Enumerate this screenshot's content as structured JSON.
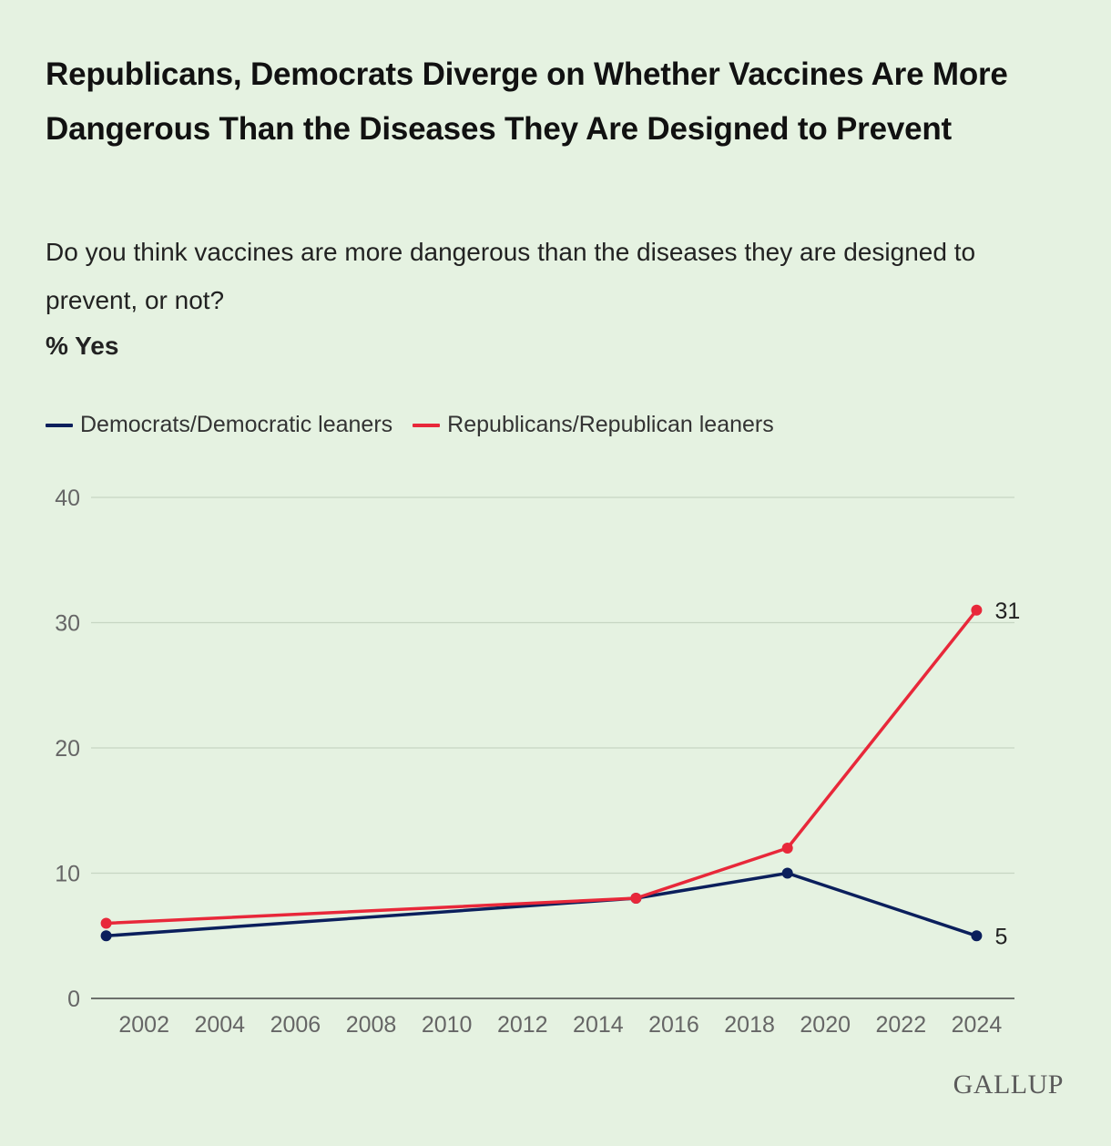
{
  "title": "Republicans, Democrats Diverge on Whether Vaccines Are More Dangerous Than the Diseases They Are Designed to Prevent",
  "subtitle": "Do you think vaccines are more dangerous than the diseases they are designed to prevent, or not?",
  "unit_label": "% Yes",
  "logo": "GALLUP",
  "chart_data": {
    "type": "line",
    "title": "Republicans, Democrats Diverge on Whether Vaccines Are More Dangerous Than the Diseases They Are Designed to Prevent",
    "ylabel": "% Yes",
    "xlabel": "",
    "xlim": [
      2000.6,
      2025
    ],
    "ylim": [
      0,
      40
    ],
    "yticks": [
      0,
      10,
      20,
      30,
      40
    ],
    "xticks": [
      2002,
      2004,
      2006,
      2008,
      2010,
      2012,
      2014,
      2016,
      2018,
      2020,
      2022,
      2024
    ],
    "grid": true,
    "legend_position": "top-left",
    "series": [
      {
        "name": "Democrats/Democratic leaners",
        "color": "#0b1f5c",
        "x": [
          2001,
          2015,
          2019,
          2024
        ],
        "values": [
          5,
          8,
          10,
          5
        ],
        "end_label": "5"
      },
      {
        "name": "Republicans/Republican leaners",
        "color": "#e8283a",
        "x": [
          2001,
          2015,
          2019,
          2024
        ],
        "values": [
          6,
          8,
          12,
          31
        ],
        "end_label": "31"
      }
    ]
  }
}
